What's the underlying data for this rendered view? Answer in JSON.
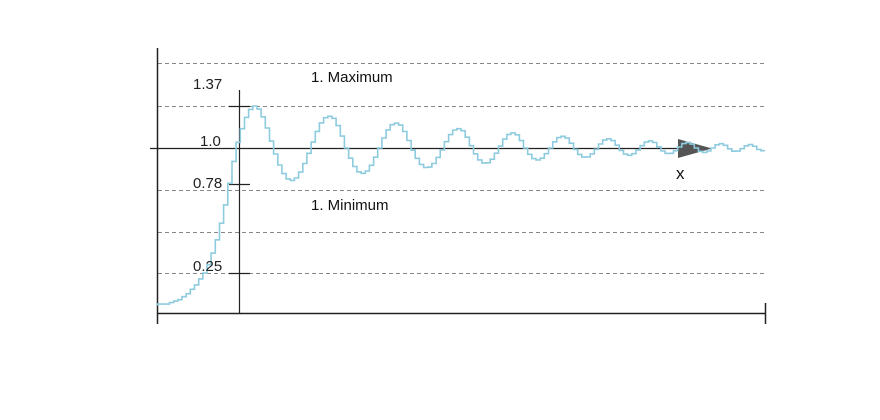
{
  "chart_data": {
    "type": "line",
    "title": "",
    "xlabel": "",
    "ylabel": "",
    "x_axis_label": "x",
    "ylim": [
      -0.02,
      1.6
    ],
    "grid": "horizontal dashed",
    "y_ticks": [
      {
        "value": 1.37,
        "label": "1.37"
      },
      {
        "value": 1.0,
        "label": "1.0"
      },
      {
        "value": 0.78,
        "label": "0.78"
      },
      {
        "value": 0.25,
        "label": "0.25"
      }
    ],
    "dashed_levels": [
      1.6,
      1.37,
      1.0,
      0.75,
      0.5,
      0.25
    ],
    "annotations": [
      {
        "name": "maximum",
        "text": "1. Maximum",
        "x": 22,
        "y": 1.37
      },
      {
        "name": "minimum",
        "text": "1. Minimum",
        "x": 27.5,
        "y": 0.78
      }
    ],
    "series": [
      {
        "step_width": 0.5,
        "ramp": [
          0.03,
          0.04,
          0.04,
          0.05,
          0.06,
          0.07,
          0.09,
          0.11,
          0.14,
          0.17,
          0.21,
          0.25,
          0.3,
          0.37,
          0.45,
          0.55,
          0.66,
          0.79,
          0.92,
          1.05,
          1.17,
          1.27,
          1.34,
          1.37
        ],
        "ramp_x_start": 0,
        "ramp_x_step": 0.5,
        "peak_x": 11.5,
        "oscillation_first_amplitude": 0.37,
        "oscillation_first_half_period": 4.5,
        "x_end": 73
      }
    ],
    "colors": {
      "series": "#8dcbdf",
      "axis": "#222222",
      "grid": "#888888",
      "arrow": "#555555"
    }
  }
}
